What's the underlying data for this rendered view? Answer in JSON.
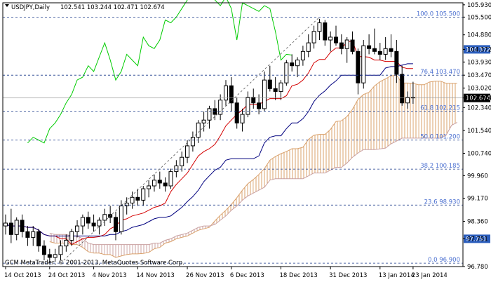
{
  "header": {
    "symbol": "USDJPY,Daily",
    "ohlc": "102.541 103.244 102.471 102.674"
  },
  "footer": {
    "copyright": "GCM MetaTrader, © 2001-2013, MetaQuotes Software Corp."
  },
  "colors": {
    "candle_up": "#000000",
    "candle_down": "#000000",
    "tenkan": "#d40000",
    "kijun": "#00007f",
    "chikou": "#00cc00",
    "cloud": "#d9a06a",
    "cloud_hatch_down": "#c9a0a0",
    "fib_text": "#4a6fd0",
    "fib_line": "#1a3a8a",
    "tag_blue": "#2a5dbd",
    "tag_black": "#000000"
  },
  "chart_data": {
    "type": "candlestick",
    "symbol": "USDJPY",
    "timeframe": "Daily",
    "ylim": [
      96.78,
      106.0
    ],
    "y_ticks": [
      "105.930",
      "105.500",
      "104.880",
      "104.372",
      "103.930",
      "103.470",
      "103.020",
      "102.674",
      "102.340",
      "101.540",
      "100.740",
      "99.960",
      "99.170",
      "98.360",
      "97.751",
      "96.780"
    ],
    "x_ticks": [
      "14 Oct 2013",
      "24 Oct 2013",
      "4 Nov 2013",
      "14 Nov 2013",
      "26 Nov 2013",
      "6 Dec 2013",
      "18 Dec 2013",
      "31 Dec 2013",
      "13 Jan 2014",
      "23 Jan 2014"
    ],
    "fib_levels": [
      {
        "label": "100.0 105.500",
        "value": 105.5
      },
      {
        "label": "76.4 103.470",
        "value": 103.47
      },
      {
        "label": "61.8 102.215",
        "value": 102.215
      },
      {
        "label": "50.0 101.200",
        "value": 101.2
      },
      {
        "label": "38.2 100.185",
        "value": 100.185
      },
      {
        "label": "23.6 98.930",
        "value": 98.93
      },
      {
        "label": "0.0 96.900",
        "value": 96.9
      }
    ],
    "price_tags": [
      {
        "label": "104.372",
        "value": 104.372,
        "style": "blue"
      },
      {
        "label": "102.674",
        "value": 102.674,
        "style": "black"
      },
      {
        "label": "97.751",
        "value": 97.751,
        "style": "blue"
      }
    ],
    "candles": [
      [
        98.2,
        98.6,
        97.9,
        98.3
      ],
      [
        98.3,
        98.8,
        97.6,
        97.9
      ],
      [
        97.9,
        98.5,
        97.7,
        98.4
      ],
      [
        98.4,
        98.6,
        97.8,
        98.0
      ],
      [
        98.0,
        98.2,
        97.5,
        97.8
      ],
      [
        97.8,
        98.2,
        97.5,
        98.0
      ],
      [
        98.0,
        98.1,
        97.3,
        97.5
      ],
      [
        97.5,
        97.7,
        97.0,
        97.2
      ],
      [
        97.2,
        97.4,
        96.9,
        97.1
      ],
      [
        97.1,
        97.4,
        96.95,
        97.2
      ],
      [
        97.2,
        97.7,
        97.0,
        97.5
      ],
      [
        97.5,
        97.9,
        97.3,
        97.7
      ],
      [
        97.7,
        98.1,
        97.5,
        98.0
      ],
      [
        98.0,
        98.4,
        97.8,
        98.2
      ],
      [
        98.2,
        98.6,
        97.9,
        98.5
      ],
      [
        98.5,
        98.7,
        98.1,
        98.3
      ],
      [
        98.3,
        98.6,
        98.0,
        98.2
      ],
      [
        98.2,
        98.5,
        97.9,
        98.4
      ],
      [
        98.4,
        98.8,
        98.2,
        98.6
      ],
      [
        98.6,
        98.9,
        98.3,
        98.5
      ],
      [
        98.5,
        98.7,
        97.7,
        98.0
      ],
      [
        98.0,
        99.1,
        97.9,
        98.9
      ],
      [
        98.9,
        99.2,
        98.6,
        99.0
      ],
      [
        99.0,
        99.4,
        98.8,
        99.2
      ],
      [
        99.2,
        99.5,
        98.9,
        99.1
      ],
      [
        99.1,
        99.6,
        98.9,
        99.5
      ],
      [
        99.5,
        99.8,
        99.2,
        99.6
      ],
      [
        99.6,
        100.0,
        99.4,
        99.8
      ],
      [
        99.8,
        100.1,
        99.5,
        99.7
      ],
      [
        99.7,
        99.9,
        99.4,
        99.6
      ],
      [
        99.6,
        100.2,
        99.5,
        100.1
      ],
      [
        100.1,
        100.5,
        99.9,
        100.3
      ],
      [
        100.3,
        100.8,
        100.1,
        100.6
      ],
      [
        100.6,
        101.2,
        100.4,
        101.0
      ],
      [
        101.0,
        101.5,
        100.8,
        101.3
      ],
      [
        101.3,
        101.9,
        101.1,
        101.8
      ],
      [
        101.8,
        102.2,
        101.5,
        101.9
      ],
      [
        101.9,
        102.4,
        101.6,
        102.3
      ],
      [
        102.3,
        102.6,
        101.9,
        102.1
      ],
      [
        102.1,
        102.8,
        101.9,
        102.6
      ],
      [
        102.6,
        103.3,
        102.4,
        103.1
      ],
      [
        103.1,
        103.4,
        102.2,
        102.5
      ],
      [
        102.5,
        102.7,
        101.6,
        101.8
      ],
      [
        101.8,
        102.3,
        101.5,
        102.1
      ],
      [
        102.1,
        102.9,
        102.0,
        102.7
      ],
      [
        102.7,
        103.0,
        102.3,
        102.5
      ],
      [
        102.5,
        102.8,
        102.1,
        102.3
      ],
      [
        102.3,
        103.6,
        102.2,
        103.3
      ],
      [
        103.3,
        103.8,
        102.9,
        103.0
      ],
      [
        103.0,
        103.4,
        102.6,
        102.9
      ],
      [
        102.9,
        103.3,
        102.6,
        103.2
      ],
      [
        103.2,
        104.0,
        103.1,
        103.9
      ],
      [
        103.9,
        104.2,
        103.6,
        103.8
      ],
      [
        103.8,
        104.1,
        103.4,
        104.0
      ],
      [
        104.0,
        104.5,
        103.8,
        104.3
      ],
      [
        104.3,
        104.9,
        104.1,
        104.6
      ],
      [
        104.6,
        105.2,
        104.4,
        105.0
      ],
      [
        105.0,
        105.44,
        104.7,
        105.3
      ],
      [
        105.3,
        105.4,
        104.5,
        104.7
      ],
      [
        104.7,
        105.0,
        104.3,
        104.8
      ],
      [
        104.8,
        105.2,
        104.5,
        104.6
      ],
      [
        104.6,
        104.9,
        104.2,
        104.4
      ],
      [
        104.4,
        104.8,
        103.9,
        104.7
      ],
      [
        104.7,
        105.0,
        104.2,
        104.3
      ],
      [
        104.3,
        104.4,
        102.8,
        103.2
      ],
      [
        103.2,
        104.7,
        103.0,
        104.5
      ],
      [
        104.5,
        104.9,
        104.2,
        104.4
      ],
      [
        104.4,
        105.1,
        104.2,
        104.3
      ],
      [
        104.3,
        104.6,
        104.0,
        104.2
      ],
      [
        104.2,
        104.8,
        104.0,
        104.4
      ],
      [
        104.4,
        104.9,
        104.1,
        104.3
      ],
      [
        104.3,
        104.7,
        103.2,
        103.5
      ],
      [
        103.5,
        103.8,
        102.4,
        102.5
      ],
      [
        102.5,
        102.9,
        102.3,
        102.7
      ],
      [
        102.7,
        103.24,
        102.47,
        102.674
      ]
    ]
  }
}
